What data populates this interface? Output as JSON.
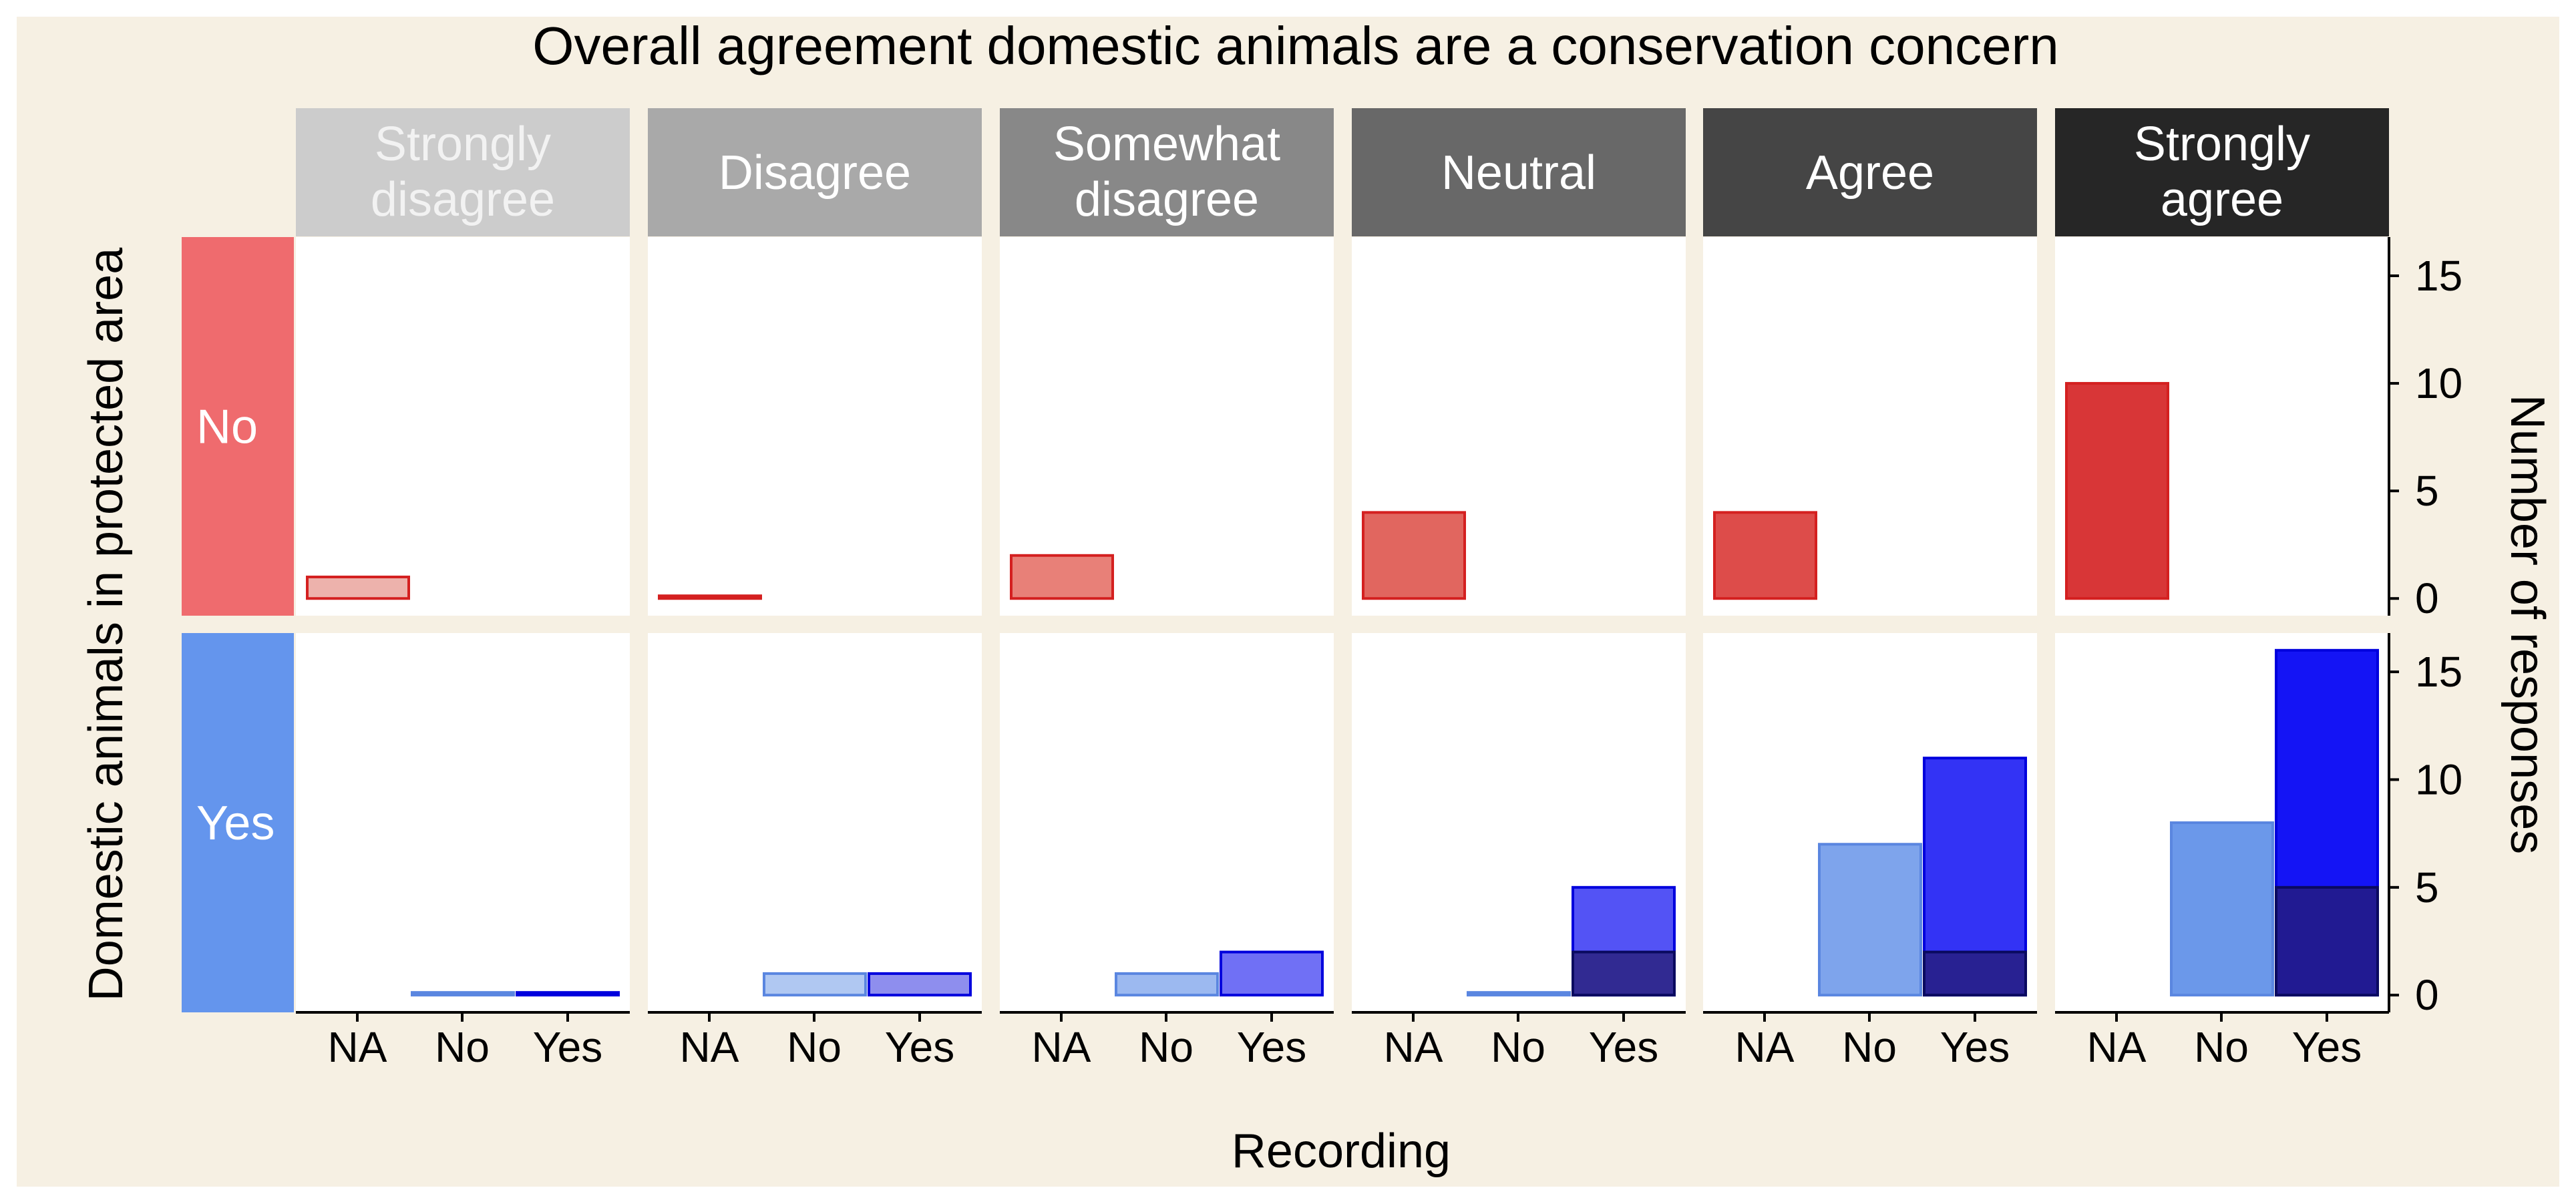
{
  "chart_data": {
    "type": "bar",
    "title": "Overall agreement domestic animals are a conservation concern",
    "xlabel": "Recording",
    "ylabel_left": "Domestic animals in protected area",
    "ylabel_right": "Number of responses",
    "facet_columns": [
      "Strongly disagree",
      "Disagree",
      "Somewhat disagree",
      "Neutral",
      "Agree",
      "Strongly agree"
    ],
    "facet_rows": [
      "No",
      "Yes"
    ],
    "categories": [
      "NA",
      "No",
      "Yes"
    ],
    "ylim": [
      -0.8,
      16.8
    ],
    "yticks": [
      0,
      5,
      10,
      15
    ],
    "grid": false,
    "colors": {
      "background": "#f6f0e3",
      "panel": "#ffffff",
      "row_no_strip": "#ef6b6e",
      "row_yes_strip": "#6495ed",
      "column_strips": [
        "#cccccc",
        "#a9a9a9",
        "#888888",
        "#686868",
        "#454545",
        "#262626"
      ],
      "column_strip_text": [
        "#f2f2f2",
        "#ffffff",
        "#ffffff",
        "#ffffff",
        "#ffffff",
        "#ffffff"
      ],
      "red_border": "#d42020",
      "red_fills": [
        "#edb2ac",
        "#e88078",
        "#e88078",
        "#e1665f",
        "#dd4c4a",
        "#d83637"
      ],
      "blue_fills": {
        "No": [
          "#b0c8f2",
          "#b0c8f2",
          "#9cb9f0",
          "#6d96ea",
          "#7ea4ec",
          "#6b98ea"
        ],
        "Yes": [
          "#8f8fef",
          "#8e8eee",
          "#7070f5",
          "#5353f5",
          "#3333f5",
          "#1414f5"
        ],
        "overlay": "#261c70"
      }
    },
    "values": {
      "No": {
        "Strongly disagree": {
          "NA": 1,
          "No": null,
          "Yes": null
        },
        "Disagree": {
          "NA": 0,
          "No": null,
          "Yes": null
        },
        "Somewhat disagree": {
          "NA": 2,
          "No": null,
          "Yes": null
        },
        "Neutral": {
          "NA": 4,
          "No": null,
          "Yes": null
        },
        "Agree": {
          "NA": 4,
          "No": null,
          "Yes": null
        },
        "Strongly agree": {
          "NA": 10,
          "No": null,
          "Yes": null
        }
      },
      "Yes": {
        "Strongly disagree": {
          "NA": null,
          "No": 0,
          "Yes": 0
        },
        "Disagree": {
          "NA": null,
          "No": 1,
          "Yes": 1
        },
        "Somewhat disagree": {
          "NA": null,
          "No": 1,
          "Yes": 2
        },
        "Neutral": {
          "NA": null,
          "No": 0,
          "Yes": 5,
          "Yes_overlay": 2
        },
        "Agree": {
          "NA": null,
          "No": 7,
          "Yes": 11,
          "Yes_overlay": 2
        },
        "Strongly agree": {
          "NA": null,
          "No": 8,
          "Yes": 16,
          "Yes_overlay": 5
        }
      }
    }
  }
}
